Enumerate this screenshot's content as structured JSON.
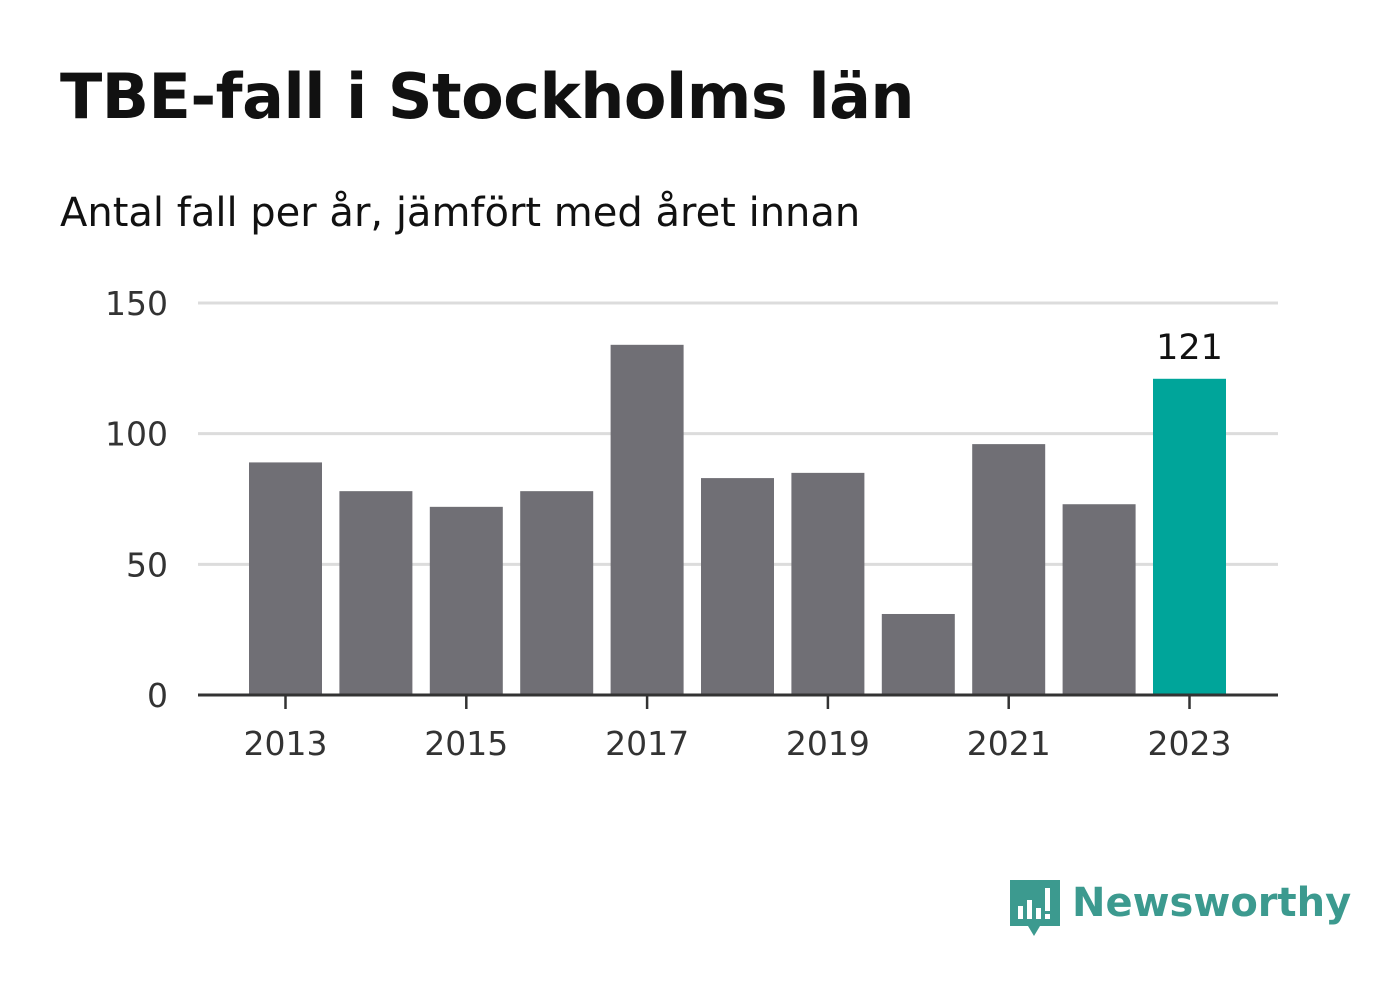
{
  "title": "TBE-fall i Stockholms län",
  "subtitle": "Antal fall per år, jämfört med året innan",
  "brand": {
    "name": "Newsworthy",
    "icon": "newsworthy-logo-icon",
    "color": "#3c9a8f"
  },
  "chart_data": {
    "type": "bar",
    "x": [
      2013,
      2014,
      2015,
      2016,
      2017,
      2018,
      2019,
      2020,
      2021,
      2022,
      2023
    ],
    "values": [
      89,
      78,
      72,
      78,
      134,
      83,
      85,
      31,
      96,
      73,
      121
    ],
    "x_tick_labels": [
      "2013",
      "2015",
      "2017",
      "2019",
      "2021",
      "2023"
    ],
    "y_ticks": [
      0,
      50,
      100,
      150
    ],
    "ylim": [
      0,
      150
    ],
    "grid": true,
    "highlight": {
      "year": 2023,
      "label": "121",
      "color": "#00a59a"
    },
    "bar_color": "#706f75"
  }
}
